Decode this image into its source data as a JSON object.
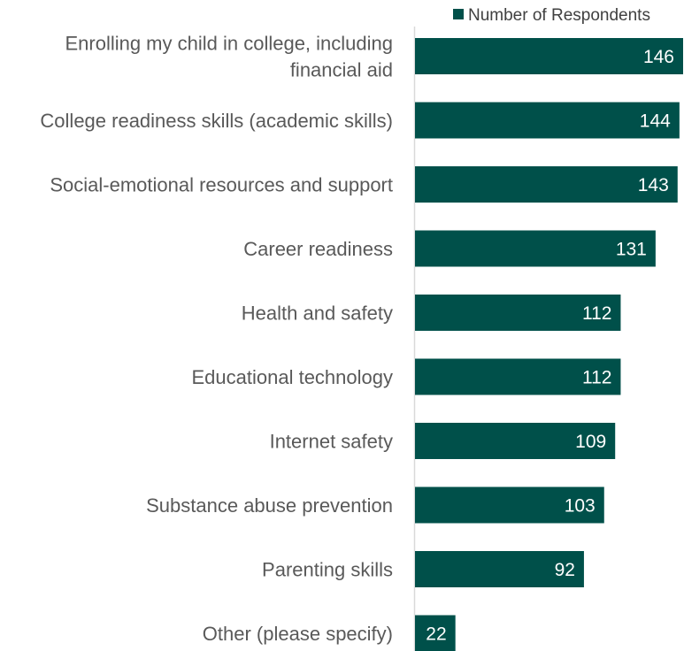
{
  "chart_data": {
    "type": "bar",
    "orientation": "horizontal",
    "categories": [
      [
        "Enrolling my child in college, including",
        "financial aid"
      ],
      [
        "College readiness skills (academic skills)"
      ],
      [
        "Social-emotional resources and support"
      ],
      [
        "Career readiness"
      ],
      [
        "Health and safety"
      ],
      [
        "Educational technology"
      ],
      [
        "Internet safety"
      ],
      [
        "Substance abuse prevention"
      ],
      [
        "Parenting skills"
      ],
      [
        "Other (please specify)"
      ]
    ],
    "series": [
      {
        "name": "Number of Respondents",
        "values": [
          146,
          144,
          143,
          131,
          112,
          112,
          109,
          103,
          92,
          22
        ]
      }
    ],
    "value_labels": [
      "146",
      "144",
      "143",
      "131",
      "112",
      "112",
      "109",
      "103",
      "92",
      "22"
    ],
    "xlim": [
      0,
      146
    ],
    "grid": false,
    "legend_position": "top-right",
    "bar_color": "#00504a"
  }
}
